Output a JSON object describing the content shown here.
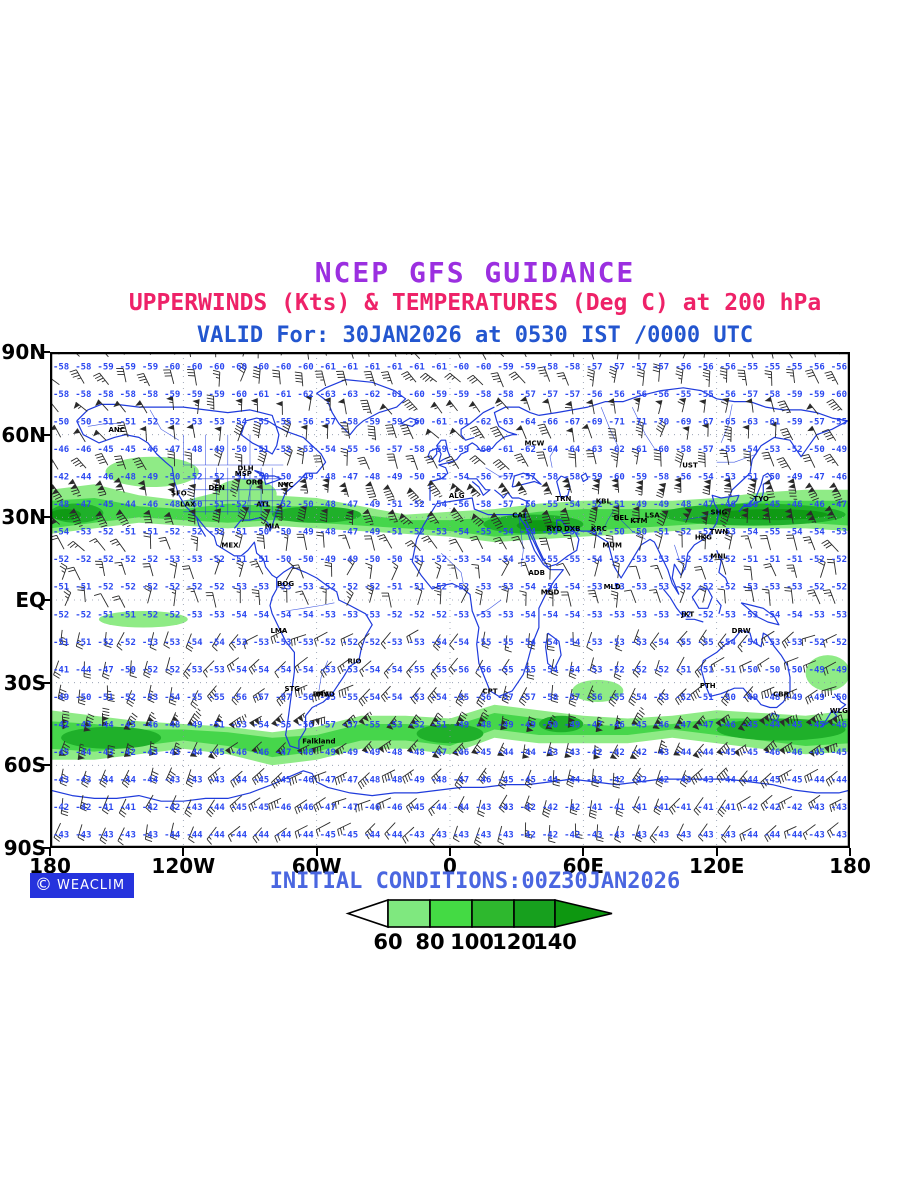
{
  "header": {
    "title": "NCEP GFS GUIDANCE",
    "subtitle": "UPPERWINDS (Kts) & TEMPERATURES (Deg C) at 200 hPa",
    "valid_line": "VALID For: 30JAN2026 at 0530 IST /0000 UTC"
  },
  "footer": {
    "copyright_symbol": "©",
    "logo_text": "WEACLIM",
    "initial_conditions": "INITIAL CONDITIONS:00Z30JAN2026"
  },
  "colors": {
    "title": "#9b2fe0",
    "subtitle": "#ee2268",
    "valid": "#2356cf",
    "initial": "#4a66e0",
    "temp_text": "#2b48f0",
    "coast": "#1f3bdc",
    "barb": "#2b2b2b",
    "badge_bg": "#2633dd",
    "green_light": "#8feb86",
    "green_mid": "#46d64b",
    "green_dark": "#1fb02a",
    "green_darkest": "#0f9a14"
  },
  "chart_data": {
    "type": "heatmap",
    "subtype": "weather-map-equirectangular",
    "level": "200 hPa",
    "wind_unit": "Kts",
    "temp_unit": "Deg C",
    "lon_range": [
      -180,
      180
    ],
    "lat_range": [
      -90,
      90
    ],
    "x_ticks": [
      "180",
      "120W",
      "60W",
      "0",
      "60E",
      "120E",
      "180"
    ],
    "y_ticks": [
      "90N",
      "60N",
      "30N",
      "EQ",
      "30S",
      "60S",
      "90S"
    ],
    "legend": {
      "tick_labels": [
        "60",
        "80",
        "100",
        "120",
        "140"
      ],
      "box_colors": [
        "#7fe87f",
        "#44da44",
        "#2eb82e",
        "#17a01e"
      ],
      "arrow_color": "#0d9710",
      "below_min_color": "#ffffff"
    },
    "temp_rows": [
      {
        "lat": 85,
        "values": [
          -58,
          -59,
          -60,
          -60,
          -61,
          -61,
          -60,
          -58,
          -57,
          -56,
          -55,
          -56
        ]
      },
      {
        "lat": 75,
        "values": [
          -58,
          -58,
          -59,
          -61,
          -63,
          -60,
          -58,
          -57,
          -56,
          -55,
          -58,
          -60
        ]
      },
      {
        "lat": 65,
        "values": [
          -50,
          -51,
          -53,
          -55,
          -58,
          -60,
          -62,
          -66,
          -72,
          -68,
          -61,
          -55
        ]
      },
      {
        "lat": 55,
        "values": [
          -46,
          -45,
          -48,
          -52,
          -55,
          -58,
          -60,
          -64,
          -62,
          -57,
          -53,
          -49
        ]
      },
      {
        "lat": 45,
        "values": [
          -42,
          -48,
          -52,
          -50,
          -47,
          -50,
          -56,
          -58,
          -60,
          -55,
          -50,
          -46
        ]
      },
      {
        "lat": 35,
        "values": [
          -48,
          -44,
          -51,
          -53,
          -47,
          -52,
          -58,
          -55,
          -50,
          -47,
          -45,
          -47
        ]
      },
      {
        "lat": 25,
        "values": [
          -54,
          -51,
          -52,
          -50,
          -47,
          -52,
          -55,
          -53,
          -50,
          -52,
          -55,
          -53
        ]
      },
      {
        "lat": 15,
        "values": [
          -52,
          -52,
          -53,
          -50,
          -49,
          -51,
          -54,
          -55,
          -53,
          -52,
          -51,
          -52
        ]
      },
      {
        "lat": 5,
        "values": [
          -51,
          -52,
          -52,
          -53,
          -52,
          -51,
          -53,
          -54,
          -53,
          -52,
          -53,
          -52
        ]
      },
      {
        "lat": -5,
        "values": [
          -52,
          -51,
          -53,
          -54,
          -53,
          -52,
          -53,
          -54,
          -53,
          -52,
          -54,
          -53
        ]
      },
      {
        "lat": -15,
        "values": [
          -51,
          -52,
          -54,
          -53,
          -52,
          -53,
          -55,
          -54,
          -53,
          -55,
          -53,
          -52
        ]
      },
      {
        "lat": -25,
        "values": [
          -41,
          -51,
          -53,
          -54,
          -53,
          -55,
          -56,
          -54,
          -52,
          -51,
          -50,
          -49
        ]
      },
      {
        "lat": -35,
        "values": [
          -49,
          -52,
          -55,
          -57,
          -55,
          -53,
          -56,
          -58,
          -55,
          -51,
          -48,
          -50
        ]
      },
      {
        "lat": -45,
        "values": [
          -42,
          -45,
          -50,
          -55,
          -57,
          -52,
          -48,
          -50,
          -45,
          -47,
          -44,
          -46
        ]
      },
      {
        "lat": -55,
        "values": [
          -45,
          -42,
          -44,
          -47,
          -49,
          -48,
          -45,
          -43,
          -42,
          -44,
          -46,
          -45
        ]
      },
      {
        "lat": -65,
        "values": [
          -43,
          -44,
          -43,
          -45,
          -47,
          -49,
          -46,
          -44,
          -42,
          -43,
          -45,
          -44
        ]
      },
      {
        "lat": -75,
        "values": [
          -42,
          -41,
          -43,
          -46,
          -47,
          -45,
          -43,
          -42,
          -41,
          -41,
          -42,
          -43
        ]
      },
      {
        "lat": -85,
        "values": [
          -43,
          -43,
          -44,
          -44,
          -45,
          -43,
          -43,
          -42,
          -43,
          -43,
          -44,
          -43
        ]
      }
    ],
    "stations": [
      {
        "code": "ANC",
        "lon": -150,
        "lat": 61
      },
      {
        "code": "SFO",
        "lon": -122,
        "lat": 38
      },
      {
        "code": "LAX",
        "lon": -118,
        "lat": 34
      },
      {
        "code": "DEN",
        "lon": -105,
        "lat": 40
      },
      {
        "code": "DLH",
        "lon": -92,
        "lat": 47
      },
      {
        "code": "MSP",
        "lon": -93,
        "lat": 45
      },
      {
        "code": "ORD",
        "lon": -88,
        "lat": 42
      },
      {
        "code": "NYC",
        "lon": -74,
        "lat": 41
      },
      {
        "code": "ATL",
        "lon": -84,
        "lat": 34
      },
      {
        "code": "MIA",
        "lon": -80,
        "lat": 26
      },
      {
        "code": "MEX",
        "lon": -99,
        "lat": 19
      },
      {
        "code": "BOG",
        "lon": -74,
        "lat": 5
      },
      {
        "code": "LMA",
        "lon": -77,
        "lat": -12
      },
      {
        "code": "STG",
        "lon": -71,
        "lat": -33
      },
      {
        "code": "BNA",
        "lon": -58,
        "lat": -35
      },
      {
        "code": "MVD",
        "lon": -56,
        "lat": -35
      },
      {
        "code": "RIO",
        "lon": -43,
        "lat": -23
      },
      {
        "code": "Falkland",
        "lon": -59,
        "lat": -52
      },
      {
        "code": "ALG",
        "lon": 3,
        "lat": 37
      },
      {
        "code": "CAI",
        "lon": 31,
        "lat": 30
      },
      {
        "code": "CPT",
        "lon": 18,
        "lat": -34
      },
      {
        "code": "ADB",
        "lon": 39,
        "lat": 9
      },
      {
        "code": "MGD",
        "lon": 45,
        "lat": 2
      },
      {
        "code": "MCW",
        "lon": 38,
        "lat": 56
      },
      {
        "code": "TRN",
        "lon": 51,
        "lat": 36
      },
      {
        "code": "RYD",
        "lon": 47,
        "lat": 25
      },
      {
        "code": "DXB",
        "lon": 55,
        "lat": 25
      },
      {
        "code": "KBL",
        "lon": 69,
        "lat": 35
      },
      {
        "code": "KRC",
        "lon": 67,
        "lat": 25
      },
      {
        "code": "DEL",
        "lon": 77,
        "lat": 29
      },
      {
        "code": "MUM",
        "lon": 73,
        "lat": 19
      },
      {
        "code": "KTM",
        "lon": 85,
        "lat": 28
      },
      {
        "code": "LSA",
        "lon": 91,
        "lat": 30
      },
      {
        "code": "MLD",
        "lon": 73,
        "lat": 4
      },
      {
        "code": "UST",
        "lon": 108,
        "lat": 48
      },
      {
        "code": "SHG",
        "lon": 121,
        "lat": 31
      },
      {
        "code": "HKG",
        "lon": 114,
        "lat": 22
      },
      {
        "code": "TWN",
        "lon": 121,
        "lat": 24
      },
      {
        "code": "MNL",
        "lon": 121,
        "lat": 15
      },
      {
        "code": "TYO",
        "lon": 140,
        "lat": 36
      },
      {
        "code": "JKT",
        "lon": 107,
        "lat": -6
      },
      {
        "code": "DRW",
        "lon": 131,
        "lat": -12
      },
      {
        "code": "PTH",
        "lon": 116,
        "lat": -32
      },
      {
        "code": "CBR",
        "lon": 149,
        "lat": -35
      },
      {
        "code": "WLG",
        "lon": 175,
        "lat": -41
      }
    ],
    "jet_bands": [
      {
        "hemisphere": "N",
        "lat_center": 31,
        "lat_half_width": 8,
        "speed_by_lon": [
          140,
          120,
          90,
          100,
          115,
          95,
          100,
          120,
          115,
          120,
          135,
          140,
          140
        ]
      },
      {
        "hemisphere": "S",
        "lat_center": -47,
        "lat_half_width": 8,
        "speed_by_lon": [
          110,
          115,
          85,
          80,
          95,
          90,
          105,
          95,
          95,
          80,
          100,
          115,
          110
        ]
      }
    ]
  }
}
